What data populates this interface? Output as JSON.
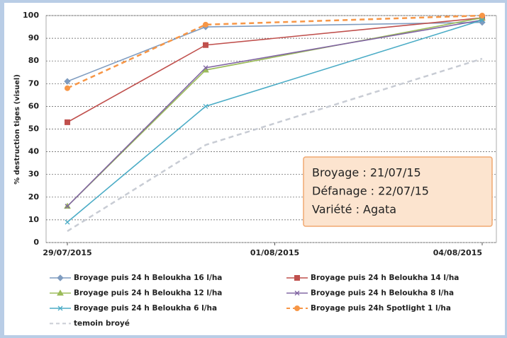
{
  "chart_data": {
    "type": "line",
    "y_label": "% destruction tiges (visuel)",
    "x": [
      "29/07/2015",
      "31/07/2015",
      "04/08/2015"
    ],
    "xlim": [
      "29/07/2015",
      "04/08/2015"
    ],
    "xticks": [
      "29/07/2015",
      "01/08/2015",
      "04/08/2015"
    ],
    "ylim": [
      0,
      100
    ],
    "yticks": [
      0,
      10,
      20,
      30,
      40,
      50,
      60,
      70,
      80,
      90,
      100
    ],
    "grid": true,
    "legend": "bottom",
    "series": [
      {
        "name": "Broyage puis 24 h  Beloukha 16 l/ha",
        "color": "#7f9cc0",
        "marker": "diamond",
        "values": [
          71,
          95,
          97
        ]
      },
      {
        "name": "Broyage puis 24 h  Beloukha 14 l/ha",
        "color": "#c0504d",
        "marker": "square",
        "values": [
          53,
          87,
          99
        ]
      },
      {
        "name": "Broyage puis 24 h  Beloukha 12 l/ha",
        "color": "#9bbb59",
        "marker": "triangle",
        "values": [
          16,
          76,
          99
        ]
      },
      {
        "name": "Broyage puis 24 h  Beloukha 8 l/ha",
        "color": "#8064a2",
        "marker": "cross",
        "values": [
          16,
          77,
          98
        ]
      },
      {
        "name": "Broyage puis 24 h  Beloukha 6 l/ha",
        "color": "#4bacc6",
        "marker": "cross",
        "values": [
          9,
          60,
          98
        ]
      },
      {
        "name": "Broyage puis 24h Spotlight 1 l/ha",
        "color": "#f79646",
        "marker": "circle",
        "dashed": true,
        "values": [
          68,
          96,
          100
        ]
      },
      {
        "name": "temoin broyé",
        "color": "#c8ccd4",
        "marker": "none",
        "dashed": true,
        "values": [
          5,
          43,
          81
        ]
      }
    ],
    "annotation": [
      "Broyage : 21/07/15",
      "Défanage : 22/07/15",
      "Variété : Agata"
    ]
  }
}
